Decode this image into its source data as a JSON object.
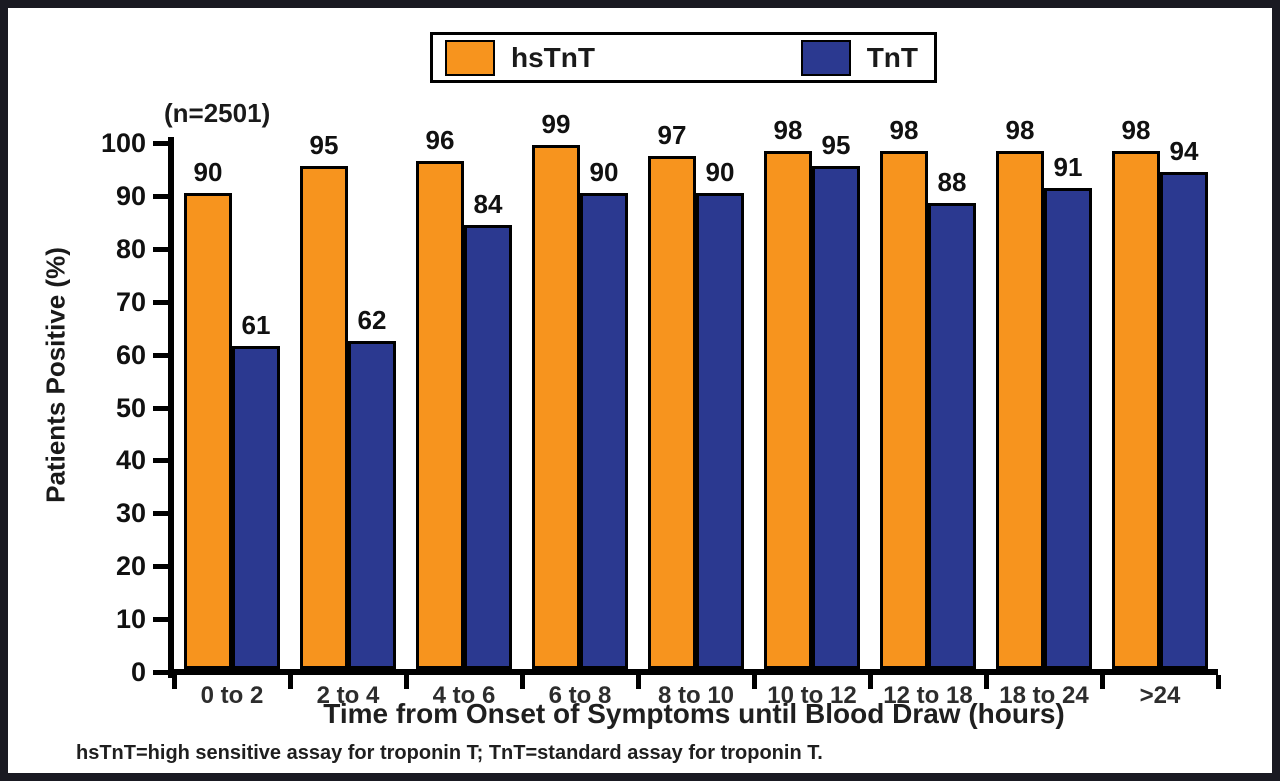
{
  "annotation": "(n=2501)",
  "footnote": "hsTnT=high sensitive assay for troponin T; TnT=standard assay for troponin T.",
  "legend": {
    "items": [
      {
        "label": "hsTnT",
        "color": "#F7941E"
      },
      {
        "label": "TnT",
        "color": "#2B3990"
      }
    ]
  },
  "chart_data": {
    "type": "bar",
    "title": "",
    "categories": [
      "0 to 2",
      "2 to 4",
      "4 to 6",
      "6 to 8",
      "8 to 10",
      "10 to 12",
      "12 to 18",
      "18 to 24",
      ">24"
    ],
    "series": [
      {
        "name": "hsTnT",
        "color": "#F7941E",
        "values": [
          90,
          95,
          96,
          99,
          97,
          98,
          98,
          98,
          98
        ]
      },
      {
        "name": "TnT",
        "color": "#2B3990",
        "values": [
          61,
          62,
          84,
          90,
          90,
          95,
          88,
          91,
          94
        ]
      }
    ],
    "xlabel": "Time from Onset of Symptoms until Blood Draw (hours)",
    "ylabel": "Patients Positive (%)",
    "ylim": [
      0,
      100
    ],
    "yticks": [
      0,
      10,
      20,
      30,
      40,
      50,
      60,
      70,
      80,
      90,
      100
    ],
    "grid": false,
    "legend_position": "top-center",
    "bar_labels": true,
    "annotation": "(n=2501)",
    "axis_color": "#000000"
  }
}
